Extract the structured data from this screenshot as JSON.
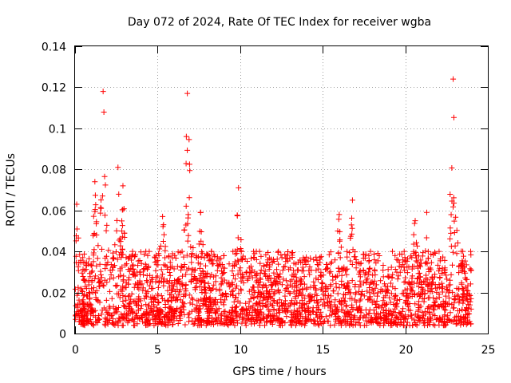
{
  "chart_data": {
    "type": "scatter",
    "title": "Day 072 of 2024, Rate Of TEC Index for receiver wgba",
    "xlabel": "GPS time / hours",
    "ylabel": "ROTI / TECUs",
    "xlim": [
      0,
      25
    ],
    "ylim": [
      0,
      0.14
    ],
    "x_ticks": [
      0,
      5,
      10,
      15,
      20,
      25
    ],
    "x_tick_labels": [
      "0",
      "5",
      "10",
      "15",
      "20",
      "25"
    ],
    "y_ticks": [
      0,
      0.02,
      0.04,
      0.06,
      0.08,
      0.1,
      0.12,
      0.14
    ],
    "y_tick_labels": [
      "0",
      "0.02",
      "0.04",
      "0.06",
      "0.08",
      "0.1",
      "0.12",
      "0.14"
    ],
    "grid": true,
    "marker": "+",
    "color": "#ff0000",
    "data_span_hours": [
      0,
      24
    ],
    "baseline_range": [
      0.005,
      0.04
    ],
    "peaks": [
      {
        "x": 1.7,
        "y": 0.118
      },
      {
        "x": 6.8,
        "y": 0.117
      },
      {
        "x": 22.9,
        "y": 0.124
      }
    ],
    "secondary_peaks": [
      {
        "x": 0.1,
        "y": 0.063
      },
      {
        "x": 1.2,
        "y": 0.074
      },
      {
        "x": 2.6,
        "y": 0.081
      },
      {
        "x": 2.9,
        "y": 0.072
      },
      {
        "x": 5.3,
        "y": 0.057
      },
      {
        "x": 7.6,
        "y": 0.059
      },
      {
        "x": 9.9,
        "y": 0.071
      },
      {
        "x": 16.0,
        "y": 0.058
      },
      {
        "x": 16.8,
        "y": 0.065
      },
      {
        "x": 20.6,
        "y": 0.055
      },
      {
        "x": 21.3,
        "y": 0.059
      }
    ]
  }
}
